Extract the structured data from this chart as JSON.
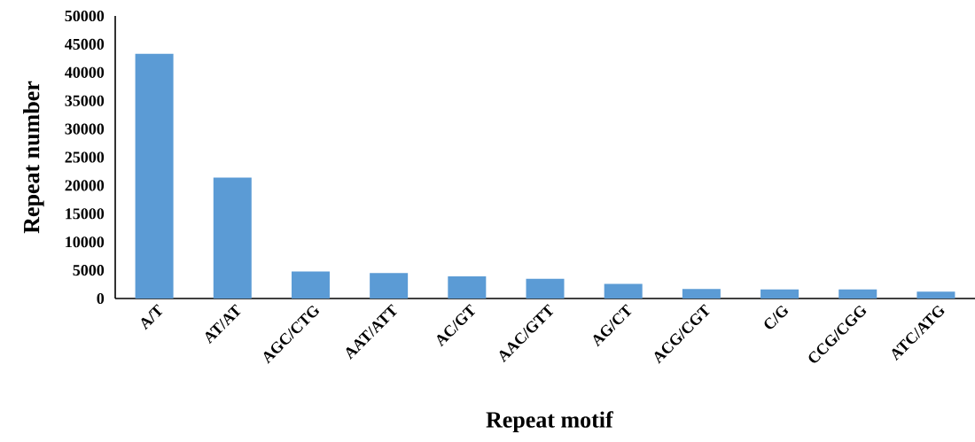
{
  "chart_data": {
    "type": "bar",
    "xlabel": "Repeat motif",
    "ylabel": "Repeat number",
    "categories": [
      "A/T",
      "AT/AT",
      "AGC/CTG",
      "AAT/ATT",
      "AC/GT",
      "AAC/GTT",
      "AG/CT",
      "ACG/CGT",
      "C/G",
      "CCG/CGG",
      "ATC/ATG"
    ],
    "values": [
      43300,
      21400,
      4800,
      4500,
      3900,
      3500,
      2600,
      1700,
      1600,
      1600,
      1200
    ],
    "color": "#5b9bd5",
    "ylim": [
      0,
      50000
    ],
    "yticks": [
      0,
      5000,
      10000,
      15000,
      20000,
      25000,
      30000,
      35000,
      40000,
      45000,
      50000
    ]
  }
}
